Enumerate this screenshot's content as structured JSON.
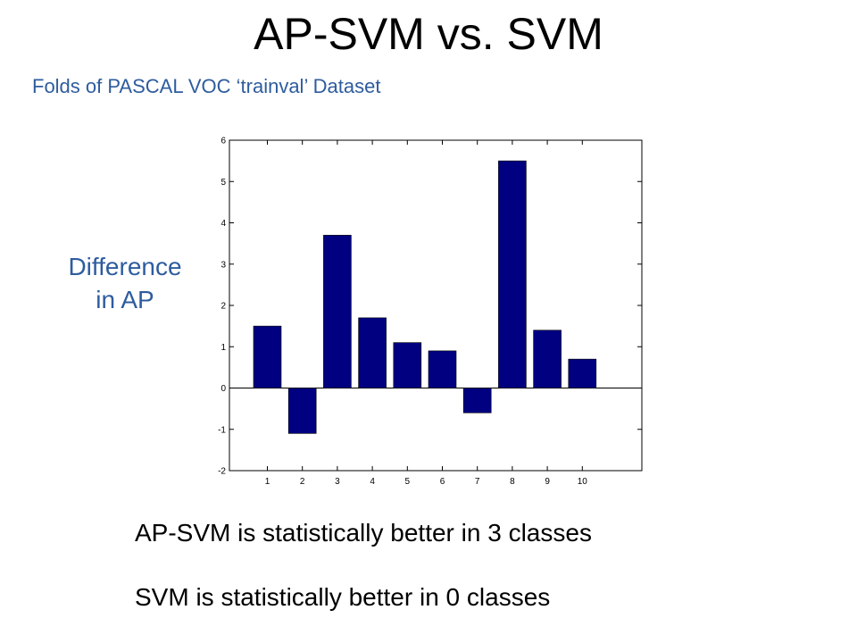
{
  "slide": {
    "title": "AP-SVM vs. SVM",
    "subtitle": "Folds of PASCAL VOC ‘trainval’ Dataset",
    "ylabel_line1": "Difference",
    "ylabel_line2": "in AP",
    "note1": "AP-SVM is statistically better in 3 classes",
    "note2": "SVM is statistically better in 0 classes"
  },
  "colors": {
    "accent": "#2E5C9E",
    "bar": "#000080"
  },
  "chart_data": {
    "type": "bar",
    "title": "",
    "xlabel": "",
    "ylabel": "Difference in AP",
    "categories": [
      "1",
      "2",
      "3",
      "4",
      "5",
      "6",
      "7",
      "8",
      "9",
      "10"
    ],
    "values": [
      1.5,
      -1.1,
      3.7,
      1.7,
      1.1,
      0.9,
      -0.6,
      5.5,
      1.4,
      0.7
    ],
    "ylim": [
      -2,
      6
    ],
    "yticks": [
      "-2",
      "-1",
      "0",
      "1",
      "2",
      "3",
      "4",
      "5",
      "6"
    ],
    "grid": false,
    "legend": "none"
  }
}
